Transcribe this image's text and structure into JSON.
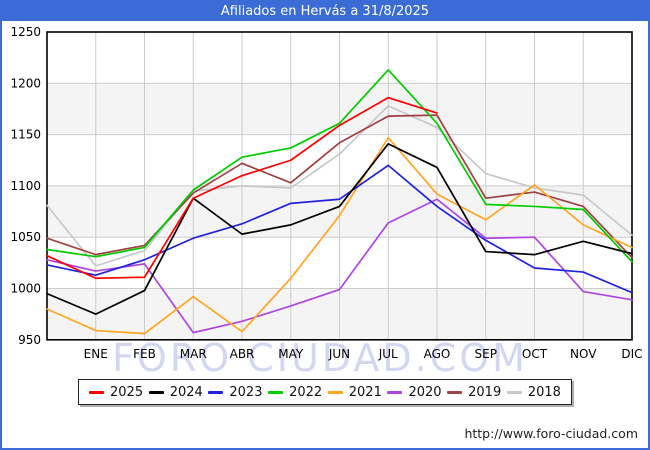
{
  "window": {
    "title": "Afiliados en Hervás a 31/8/2025"
  },
  "watermark": "FORO CIUDAD.COM",
  "footer": {
    "url": "http://www.foro-ciudad.com"
  },
  "colors": {
    "frame_blue": "#3b6cd6",
    "grid": "#cccccc",
    "band_shade": "#f4f4f4",
    "watermark": "#d3d6f1",
    "axis": "#000000"
  },
  "chart_data": {
    "type": "line",
    "title": "Afiliados en Hervás a 31/8/2025",
    "xlabel": "",
    "ylabel": "",
    "ylim": [
      950,
      1250
    ],
    "yticks": [
      1250,
      1200,
      1150,
      1100,
      1050,
      1000,
      950
    ],
    "grid": true,
    "legend_position": "bottom",
    "categories": [
      "ENE",
      "FEB",
      "MAR",
      "ABR",
      "MAY",
      "JUN",
      "JUL",
      "AGO",
      "SEP",
      "OCT",
      "NOV",
      "DIC"
    ],
    "layout_note": "Each series has 13 points: the first point sits on the y-axis (previous December), followed by the 12 labeled months. The 2025 series ends at AGO (data to 31/8/2025).",
    "series": [
      {
        "name": "2018",
        "color": "#c8c8c8",
        "values": [
          1081,
          1022,
          1037,
          1095,
          1100,
          1098,
          1131,
          1178,
          1157,
          1112,
          1098,
          1091,
          1052
        ]
      },
      {
        "name": "2019",
        "color": "#a04040",
        "values": [
          1049,
          1033,
          1042,
          1093,
          1122,
          1103,
          1142,
          1168,
          1169,
          1088,
          1094,
          1080,
          1030
        ]
      },
      {
        "name": "2020",
        "color": "#b044e0",
        "values": [
          1028,
          1017,
          1024,
          957,
          968,
          983,
          999,
          1064,
          1087,
          1049,
          1050,
          997,
          989
        ]
      },
      {
        "name": "2021",
        "color": "#ffa525",
        "values": [
          980,
          959,
          956,
          992,
          958,
          1010,
          1071,
          1147,
          1092,
          1067,
          1101,
          1062,
          1040
        ]
      },
      {
        "name": "2022",
        "color": "#00cc00",
        "values": [
          1038,
          1031,
          1040,
          1096,
          1128,
          1137,
          1161,
          1213,
          1161,
          1082,
          1080,
          1077,
          1026
        ]
      },
      {
        "name": "2023",
        "color": "#2222dd",
        "values": [
          1023,
          1013,
          1028,
          1049,
          1063,
          1083,
          1087,
          1120,
          1080,
          1047,
          1020,
          1016,
          996
        ]
      },
      {
        "name": "2024",
        "color": "#000000",
        "values": [
          995,
          975,
          998,
          1088,
          1053,
          1062,
          1080,
          1141,
          1118,
          1036,
          1033,
          1046,
          1034
        ]
      },
      {
        "name": "2025",
        "color": "#ff0000",
        "values": [
          1032,
          1010,
          1011,
          1088,
          1110,
          1125,
          1159,
          1186,
          1171
        ]
      }
    ],
    "legend_order": [
      "2025",
      "2024",
      "2023",
      "2022",
      "2021",
      "2020",
      "2019",
      "2018"
    ]
  }
}
